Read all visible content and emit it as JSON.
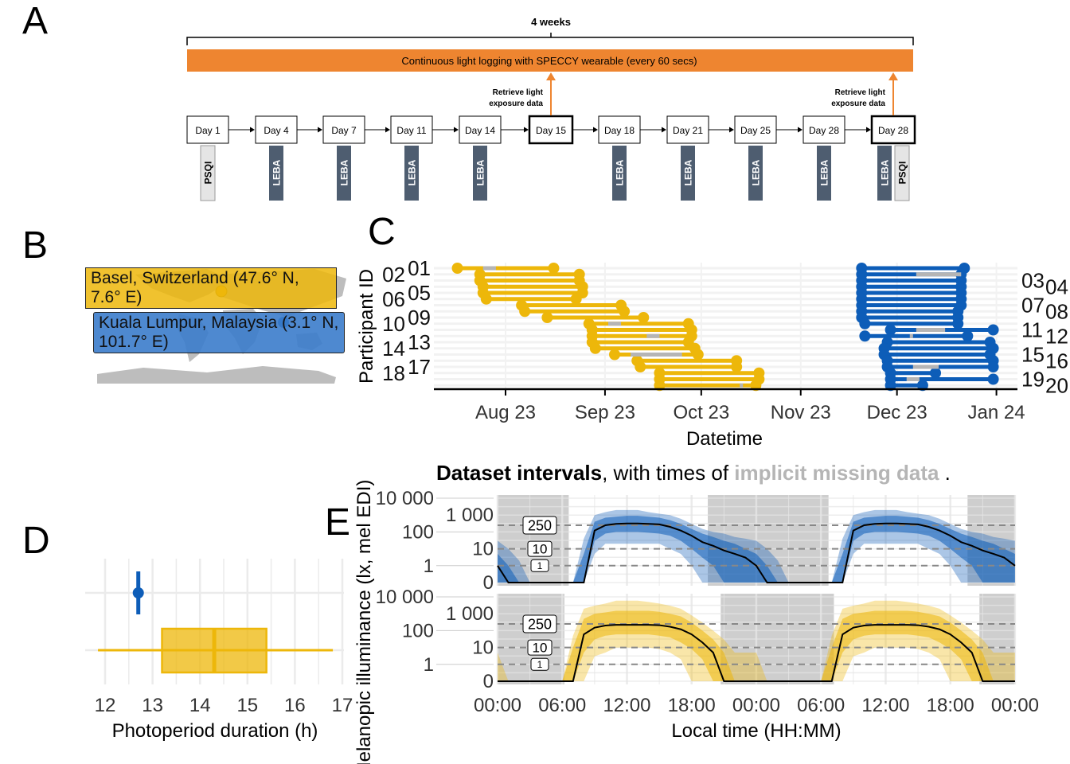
{
  "panel_letters": {
    "a": "A",
    "b": "B",
    "c": "C",
    "d": "D",
    "e": "E"
  },
  "colors": {
    "basel": "#EDB70A",
    "kuala_lumpur": "#0D5DB8",
    "logging_bar": "#EE8530",
    "questionnaire_leba": "#4E5D70",
    "questionnaire_psqi": "#E5E5E5",
    "missing": "#B5B5B5",
    "night_shading": "#BDBDBD"
  },
  "panel_a": {
    "duration_label": "4 weeks",
    "logging_bar_label": "Continuous light logging with SPECCY wearable (every 60 secs)",
    "retrieve_label_line1": "Retrieve light",
    "retrieve_label_line2": "exposure data",
    "days": [
      {
        "label": "Day 1",
        "bold": false,
        "tags": [
          "PSQI"
        ]
      },
      {
        "label": "Day 4",
        "bold": false,
        "tags": [
          "LEBA"
        ]
      },
      {
        "label": "Day 7",
        "bold": false,
        "tags": [
          "LEBA"
        ]
      },
      {
        "label": "Day 11",
        "bold": false,
        "tags": [
          "LEBA"
        ]
      },
      {
        "label": "Day 14",
        "bold": false,
        "tags": [
          "LEBA"
        ]
      },
      {
        "label": "Day 15",
        "bold": true,
        "tags": [],
        "retrieve": true
      },
      {
        "label": "Day 18",
        "bold": false,
        "tags": [
          "LEBA"
        ]
      },
      {
        "label": "Day 21",
        "bold": false,
        "tags": [
          "LEBA"
        ]
      },
      {
        "label": "Day 25",
        "bold": false,
        "tags": [
          "LEBA"
        ]
      },
      {
        "label": "Day 28",
        "bold": false,
        "tags": [
          "LEBA"
        ]
      },
      {
        "label": "Day 28",
        "bold": true,
        "tags": [
          "LEBA",
          "PSQI"
        ],
        "retrieve": true
      }
    ]
  },
  "panel_b": {
    "locations": [
      {
        "label": "Basel, Switzerland (47.6° N, 7.6° E)",
        "site": "basel",
        "lat": 47.6,
        "lon": 7.6
      },
      {
        "label": "Kuala Lumpur, Malaysia (3.1° N, 101.7° E)",
        "site": "kuala_lumpur",
        "lat": 3.1,
        "lon": 101.7
      }
    ]
  },
  "chart_data": [
    {
      "panel": "C",
      "type": "interval",
      "ylabel": "Participant ID",
      "xlabel": "Datetime",
      "x_ticks": [
        {
          "date": "2023-08-01",
          "label": "Aug 23"
        },
        {
          "date": "2023-09-01",
          "label": "Sep 23"
        },
        {
          "date": "2023-10-01",
          "label": "Oct 23"
        },
        {
          "date": "2023-11-01",
          "label": "Nov 23"
        },
        {
          "date": "2023-12-01",
          "label": "Dec 23"
        },
        {
          "date": "2024-01-01",
          "label": "Jan 24"
        }
      ],
      "participants": [
        "01",
        "02",
        "03",
        "04",
        "05",
        "06",
        "07",
        "08",
        "09",
        "10",
        "11",
        "12",
        "13",
        "14",
        "15",
        "16",
        "17",
        "18",
        "19",
        "20"
      ],
      "caption_bold": "Dataset intervals",
      "caption_mid": ", with times of ",
      "caption_highlight": "implicit missing data",
      "caption_end": " .",
      "series": [
        {
          "site": "basel",
          "intervals": [
            [
              "2023-07-17",
              "2023-08-16"
            ],
            [
              "2023-07-24",
              "2023-08-24"
            ],
            [
              "2023-07-24",
              "2023-08-24"
            ],
            [
              "2023-07-25",
              "2023-08-25"
            ],
            [
              "2023-07-25",
              "2023-08-25"
            ],
            [
              "2023-07-26",
              "2023-08-23"
            ],
            [
              "2023-08-06",
              "2023-09-06"
            ],
            [
              "2023-08-07",
              "2023-09-07"
            ],
            [
              "2023-08-14",
              "2023-09-13"
            ],
            [
              "2023-08-27",
              "2023-09-27"
            ],
            [
              "2023-08-28",
              "2023-09-28"
            ],
            [
              "2023-08-28",
              "2023-09-28"
            ],
            [
              "2023-08-28",
              "2023-09-27"
            ],
            [
              "2023-08-29",
              "2023-09-29"
            ],
            [
              "2023-09-04",
              "2023-09-30"
            ],
            [
              "2023-09-11",
              "2023-10-12"
            ],
            [
              "2023-09-12",
              "2023-10-12"
            ],
            [
              "2023-09-18",
              "2023-10-19"
            ],
            [
              "2023-09-18",
              "2023-10-19"
            ],
            [
              "2023-09-18",
              "2023-10-18"
            ]
          ],
          "missing": [
            [
              1,
              "2023-07-25",
              "2023-07-29"
            ],
            [
              10,
              "2023-09-02",
              "2023-09-06"
            ],
            [
              12,
              "2023-09-14",
              "2023-09-18"
            ],
            [
              15,
              "2023-09-09",
              "2023-09-25"
            ],
            [
              20,
              "2023-10-13",
              "2023-10-14"
            ]
          ]
        },
        {
          "site": "kuala_lumpur",
          "intervals": [
            [
              "2023-11-20",
              "2023-12-22"
            ],
            [
              "2023-11-20",
              "2023-12-21"
            ],
            [
              "2023-11-20",
              "2023-12-21"
            ],
            [
              "2023-11-20",
              "2023-12-21"
            ],
            [
              "2023-11-20",
              "2023-12-21"
            ],
            [
              "2023-11-20",
              "2023-12-21"
            ],
            [
              "2023-11-20",
              "2023-12-21"
            ],
            [
              "2023-11-20",
              "2023-12-20"
            ],
            [
              "2023-11-20",
              "2023-12-20"
            ],
            [
              "2023-11-21",
              "2023-12-20"
            ],
            [
              "2023-11-29",
              "2023-12-31"
            ],
            [
              "2023-11-21",
              "2023-12-23"
            ],
            [
              "2023-11-28",
              "2023-12-30"
            ],
            [
              "2023-11-27",
              "2023-12-31"
            ],
            [
              "2023-11-27",
              "2023-12-30"
            ],
            [
              "2023-11-28",
              "2023-12-31"
            ],
            [
              "2023-11-28",
              "2023-12-31"
            ],
            [
              "2023-11-29",
              "2023-12-13"
            ],
            [
              "2023-11-29",
              "2023-12-31"
            ],
            [
              "2023-11-29",
              "2023-12-09"
            ]
          ],
          "missing": [
            [
              2,
              "2023-12-07",
              "2023-12-21"
            ],
            [
              11,
              "2023-12-07",
              "2023-12-16"
            ],
            [
              12,
              "2023-12-05",
              "2023-12-06"
            ],
            [
              17,
              "2023-12-06",
              "2023-12-14"
            ],
            [
              19,
              "2023-12-04",
              "2023-12-08"
            ]
          ]
        }
      ]
    },
    {
      "panel": "D",
      "type": "boxplot",
      "xlabel": "Photoperiod duration (h)",
      "xlim": [
        12,
        17
      ],
      "x_ticks": [
        12,
        13,
        14,
        15,
        16,
        17
      ],
      "series": [
        {
          "site": "kuala_lumpur",
          "min": 12.7,
          "q1": 12.7,
          "median": 12.7,
          "q3": 12.7,
          "max": 12.7
        },
        {
          "site": "basel",
          "min": 11.85,
          "q1": 13.2,
          "median": 14.3,
          "q3": 15.4,
          "max": 16.8
        }
      ]
    },
    {
      "panel": "E",
      "type": "area",
      "ylabel": "Melanopic illuminance (lx, mel EDI)",
      "xlabel": "Local time (HH:MM)",
      "x_ticks": [
        "00:00",
        "06:00",
        "12:00",
        "18:00",
        "00:00",
        "06:00",
        "12:00",
        "18:00",
        "00:00"
      ],
      "y_scale": "symlog",
      "y_ticks": [
        {
          "v": 0,
          "label": "0"
        },
        {
          "v": 1,
          "label": "1"
        },
        {
          "v": 10,
          "label": "10"
        },
        {
          "v": 100,
          "label": "100"
        },
        {
          "v": 1000,
          "label": "1 000"
        },
        {
          "v": 10000,
          "label": "10 000"
        }
      ],
      "reference_lines": [
        1,
        10,
        250
      ],
      "reference_labels": [
        "250",
        "10",
        "1"
      ],
      "facets": [
        {
          "site": "kuala_lumpur",
          "night_hours": [
            [
              0,
              6.6
            ],
            [
              19.5,
              30.7
            ],
            [
              43.6,
              48
            ]
          ],
          "median": [
            1,
            0,
            0,
            0,
            0,
            0,
            0,
            0,
            0,
            120,
            250,
            300,
            320,
            320,
            300,
            280,
            200,
            120,
            60,
            25,
            15,
            8,
            5,
            3
          ],
          "inner_lo": [
            0,
            0,
            0,
            0,
            0,
            0,
            0,
            0,
            0,
            30,
            80,
            100,
            100,
            100,
            90,
            80,
            60,
            30,
            10,
            3,
            1,
            0,
            0,
            0
          ],
          "inner_hi": [
            5,
            1,
            0,
            0,
            0,
            0,
            0,
            0,
            5,
            400,
            700,
            800,
            900,
            900,
            800,
            700,
            500,
            300,
            150,
            80,
            50,
            30,
            20,
            10
          ],
          "outer_lo": [
            0,
            0,
            0,
            0,
            0,
            0,
            0,
            0,
            0,
            5,
            20,
            20,
            20,
            20,
            20,
            20,
            10,
            5,
            1,
            0,
            0,
            0,
            0,
            0
          ],
          "outer_hi": [
            30,
            10,
            2,
            0,
            0,
            0,
            0,
            0,
            40,
            1000,
            1500,
            2000,
            2000,
            2000,
            1500,
            1200,
            1000,
            600,
            300,
            150,
            100,
            80,
            50,
            40
          ]
        },
        {
          "site": "basel",
          "night_hours": [
            [
              0,
              6.2
            ],
            [
              20.7,
              31.2
            ],
            [
              44.7,
              48
            ]
          ],
          "median": [
            0,
            0,
            0,
            0,
            0,
            0,
            0,
            0,
            60,
            150,
            200,
            220,
            220,
            220,
            220,
            210,
            170,
            120,
            60,
            20,
            5,
            0,
            0,
            0
          ],
          "inner_lo": [
            0,
            0,
            0,
            0,
            0,
            0,
            0,
            0,
            5,
            30,
            50,
            60,
            60,
            60,
            60,
            50,
            40,
            20,
            8,
            2,
            0,
            0,
            0,
            0
          ],
          "inner_hi": [
            0,
            0,
            0,
            0,
            0,
            0,
            0,
            10,
            500,
            1000,
            1200,
            1500,
            1500,
            1500,
            1500,
            1300,
            1000,
            700,
            300,
            100,
            30,
            5,
            0,
            0
          ],
          "outer_lo": [
            0,
            0,
            0,
            0,
            0,
            0,
            0,
            0,
            0,
            3,
            5,
            10,
            10,
            10,
            10,
            8,
            5,
            2,
            0,
            0,
            0,
            0,
            0,
            0
          ],
          "outer_hi": [
            5,
            0,
            0,
            0,
            0,
            0,
            0,
            50,
            2000,
            3000,
            4000,
            6000,
            6000,
            6000,
            5000,
            4000,
            3000,
            2000,
            800,
            300,
            100,
            30,
            5,
            5
          ]
        }
      ]
    }
  ]
}
